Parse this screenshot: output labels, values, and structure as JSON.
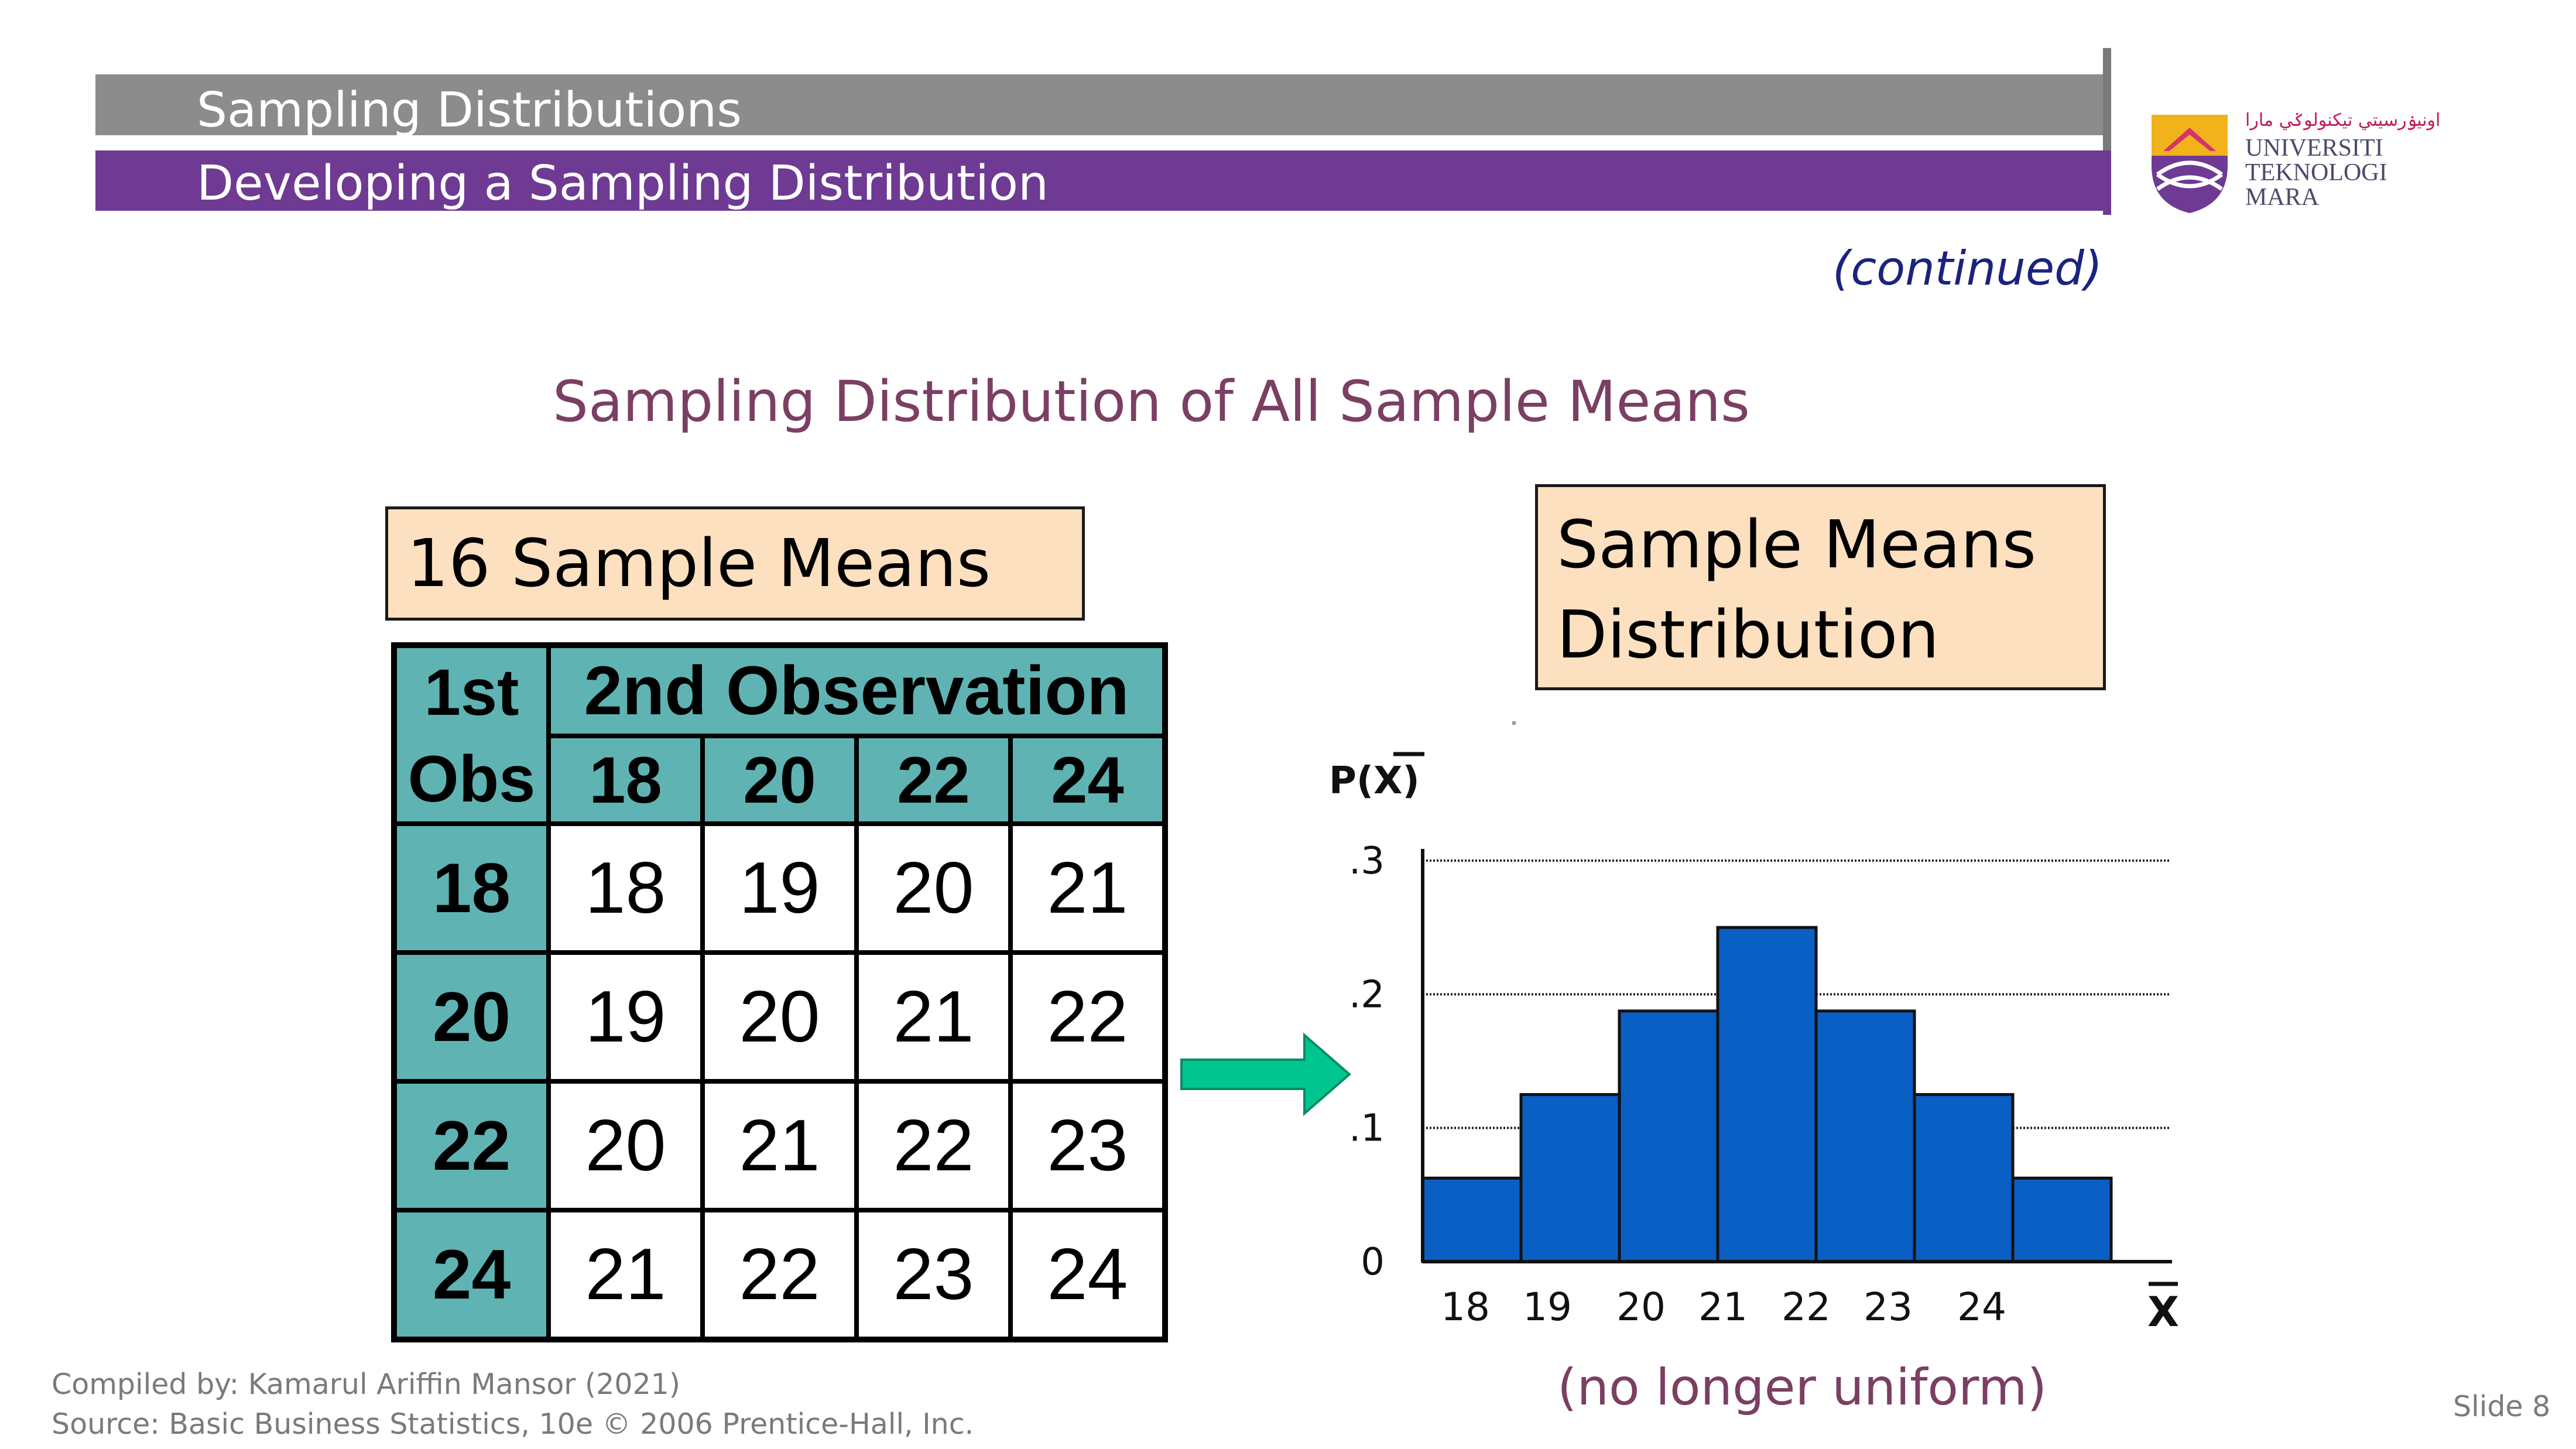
{
  "header": {
    "section_title": "Sampling Distributions",
    "slide_title": "Developing a Sampling Distribution"
  },
  "logo": {
    "line1": "UNIVERSITI",
    "line2": "TEKNOLOGI",
    "line3": "MARA",
    "arabic": "اونيۏرسيتي تيکنولوݢي مارا"
  },
  "continued_label": "(continued)",
  "main_title": "Sampling Distribution of All Sample Means",
  "left_box_label": "16 Sample Means",
  "right_box_label_line1": "Sample Means",
  "right_box_label_line2": "Distribution",
  "means_table": {
    "corner_line1": "1st",
    "corner_line2": "Obs",
    "group_header": "2nd Observation",
    "col_headers": [
      "18",
      "20",
      "22",
      "24"
    ],
    "rows": [
      {
        "header": "18",
        "values": [
          "18",
          "19",
          "20",
          "21"
        ]
      },
      {
        "header": "20",
        "values": [
          "19",
          "20",
          "21",
          "22"
        ]
      },
      {
        "header": "22",
        "values": [
          "20",
          "21",
          "22",
          "23"
        ]
      },
      {
        "header": "24",
        "values": [
          "21",
          "22",
          "23",
          "24"
        ]
      }
    ]
  },
  "chart_data": {
    "type": "bar",
    "categories": [
      "18",
      "19",
      "20",
      "21",
      "22",
      "23",
      "24"
    ],
    "values": [
      0.0625,
      0.125,
      0.1875,
      0.25,
      0.1875,
      0.125,
      0.0625
    ],
    "ylabel": "P(X)",
    "xlabel": "X",
    "ylim": [
      0,
      0.3
    ],
    "yticks": [
      0,
      0.1,
      0.2,
      0.3
    ],
    "ytick_labels": [
      "0",
      ".1",
      ".2",
      ".3"
    ],
    "grid": true,
    "bar_color": "#0a5fc4"
  },
  "annotation": "(no longer uniform)",
  "footer": {
    "compiled_by": "Compiled by: Kamarul Ariffin Mansor (2021)",
    "source": "Source: Basic Business Statistics, 10e © 2006 Prentice-Hall, Inc.",
    "slide_number": "Slide 8"
  },
  "colors": {
    "header_gray": "#8c8c8c",
    "header_purple": "#6e3a93",
    "table_teal": "#5fb3b3",
    "box_peach": "#fde0bf",
    "arrow_green": "#00c58e"
  }
}
